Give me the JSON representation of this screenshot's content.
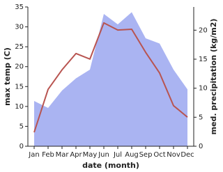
{
  "chart_data": {
    "type": "area-line",
    "x_label": "date (month)",
    "y_label": "max temp (C)",
    "y2_label": "med. precipitation (kg/m2)",
    "categories": [
      "Jan",
      "Feb",
      "Mar",
      "Apr",
      "May",
      "Jun",
      "Jul",
      "Aug",
      "Sep",
      "Oct",
      "Nov",
      "Dec"
    ],
    "ylim": [
      0,
      35
    ],
    "yticks": [
      0,
      5,
      10,
      15,
      20,
      25,
      30,
      35
    ],
    "y2lim": [
      0,
      24
    ],
    "y2ticks": [
      0,
      5,
      10,
      15,
      20
    ],
    "series": [
      {
        "name": "med. precipitation",
        "axis": "y2",
        "kind": "area",
        "color": "#aab4f2",
        "values": [
          7.8,
          6.6,
          9.6,
          11.7,
          13.2,
          22.8,
          21,
          23.1,
          18.6,
          17.7,
          13.2,
          9.8
        ]
      },
      {
        "name": "max temp",
        "kind": "line",
        "color": "#b85450",
        "values": [
          3.5,
          14.3,
          19.2,
          23.3,
          21.9,
          31,
          29.2,
          29.4,
          23.6,
          18.4,
          10.2,
          7.3
        ]
      }
    ]
  }
}
